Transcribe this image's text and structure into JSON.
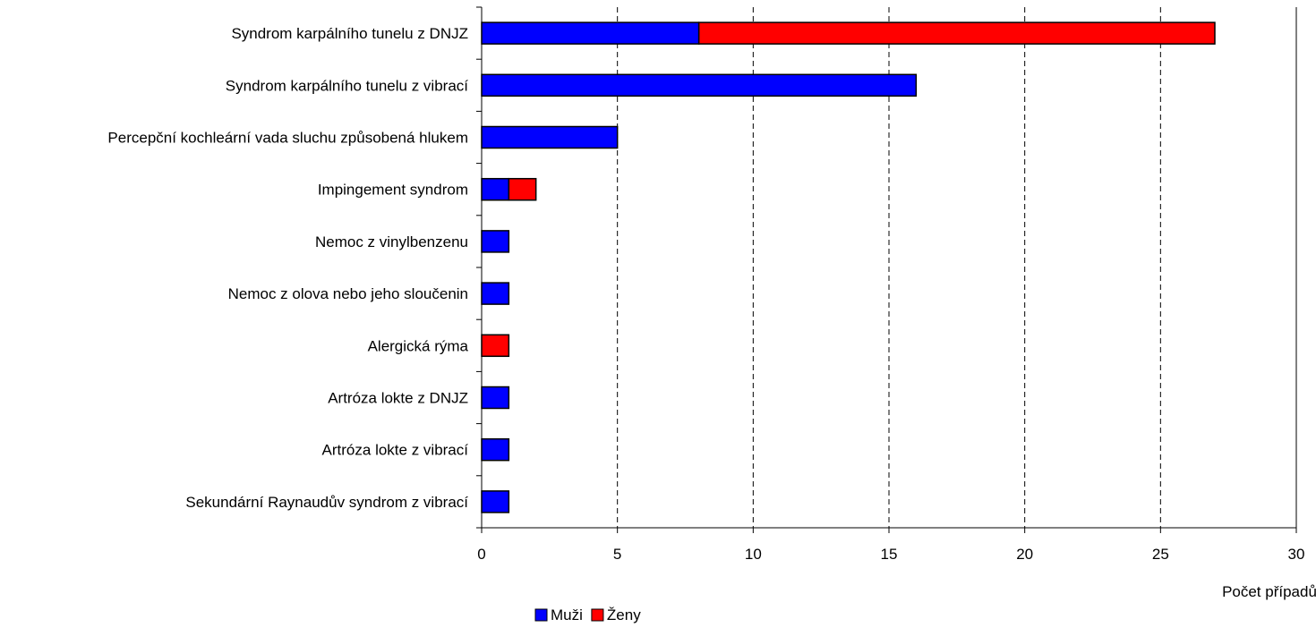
{
  "chart_data": {
    "type": "bar",
    "orientation": "horizontal",
    "stacked": true,
    "categories": [
      "Syndrom karpálního tunelu z DNJZ",
      "Syndrom karpálního tunelu z vibrací",
      "Percepční kochleární vada sluchu způsobená hlukem",
      "Impingement syndrom",
      "Nemoc z vinylbenzenu",
      "Nemoc z olova nebo jeho sloučenin",
      "Alergická rýma",
      "Artróza lokte z DNJZ",
      "Artróza lokte z vibrací",
      "Sekundární Raynaudův syndrom z vibrací"
    ],
    "series": [
      {
        "name": "Muži",
        "color": "#0000FF",
        "values": [
          8,
          16,
          5,
          1,
          1,
          1,
          0,
          1,
          1,
          1
        ]
      },
      {
        "name": "Ženy",
        "color": "#FF0000",
        "values": [
          19,
          0,
          0,
          1,
          0,
          0,
          1,
          0,
          0,
          0
        ]
      }
    ],
    "x_ticks": [
      "0",
      "5",
      "10",
      "15",
      "20",
      "25",
      "30"
    ],
    "xlim": [
      0,
      30
    ],
    "xlabel": "Počet případů",
    "ylabel": "",
    "title": "",
    "grid": "vertical dashed",
    "legend_position": "bottom"
  }
}
